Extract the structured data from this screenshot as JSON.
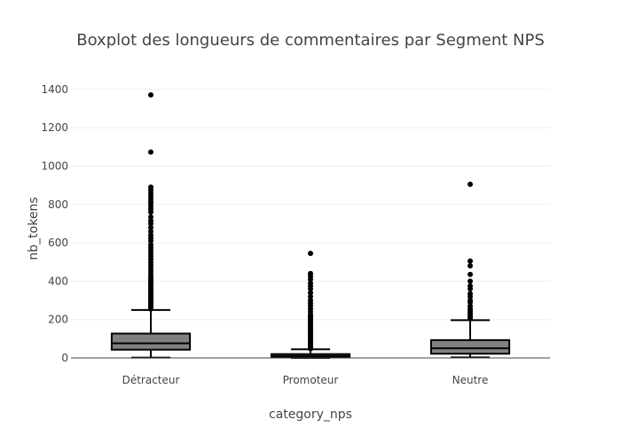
{
  "chart_data": {
    "type": "box",
    "title": "Boxplot des longueurs de commentaires par Segment NPS",
    "xlabel": "category_nps",
    "ylabel": "nb_tokens",
    "ylim": [
      0,
      1450
    ],
    "yticks": [
      0,
      200,
      400,
      600,
      800,
      1000,
      1200,
      1400
    ],
    "grid": true,
    "box_color": "#808080",
    "line_color": "#000000",
    "categories": [
      "Détracteur",
      "Promoteur",
      "Neutre"
    ],
    "boxes": [
      {
        "category": "Détracteur",
        "min": 2,
        "q1": 43,
        "median": 76,
        "q3": 127,
        "upper_fence": 250,
        "outliers": [
          255,
          262,
          270,
          278,
          285,
          292,
          300,
          310,
          318,
          326,
          335,
          345,
          355,
          365,
          375,
          385,
          395,
          405,
          415,
          425,
          440,
          455,
          470,
          485,
          500,
          515,
          530,
          545,
          560,
          575,
          590,
          610,
          625,
          640,
          660,
          680,
          700,
          715,
          735,
          760,
          775,
          790,
          805,
          815,
          830,
          845,
          860,
          875,
          890,
          1073,
          1371
        ]
      },
      {
        "category": "Promoteur",
        "min": 0,
        "q1": 4,
        "median": 10,
        "q3": 20,
        "upper_fence": 45,
        "outliers": [
          48,
          55,
          62,
          70,
          78,
          86,
          95,
          105,
          115,
          125,
          135,
          145,
          155,
          165,
          175,
          185,
          195,
          205,
          215,
          225,
          240,
          255,
          270,
          285,
          300,
          320,
          340,
          360,
          375,
          390,
          410,
          425,
          440,
          545
        ]
      },
      {
        "category": "Neutre",
        "min": 3,
        "q1": 22,
        "median": 50,
        "q3": 93,
        "upper_fence": 197,
        "outliers": [
          205,
          215,
          225,
          235,
          245,
          255,
          270,
          290,
          300,
          320,
          335,
          360,
          375,
          400,
          435,
          480,
          505,
          905
        ]
      }
    ]
  }
}
